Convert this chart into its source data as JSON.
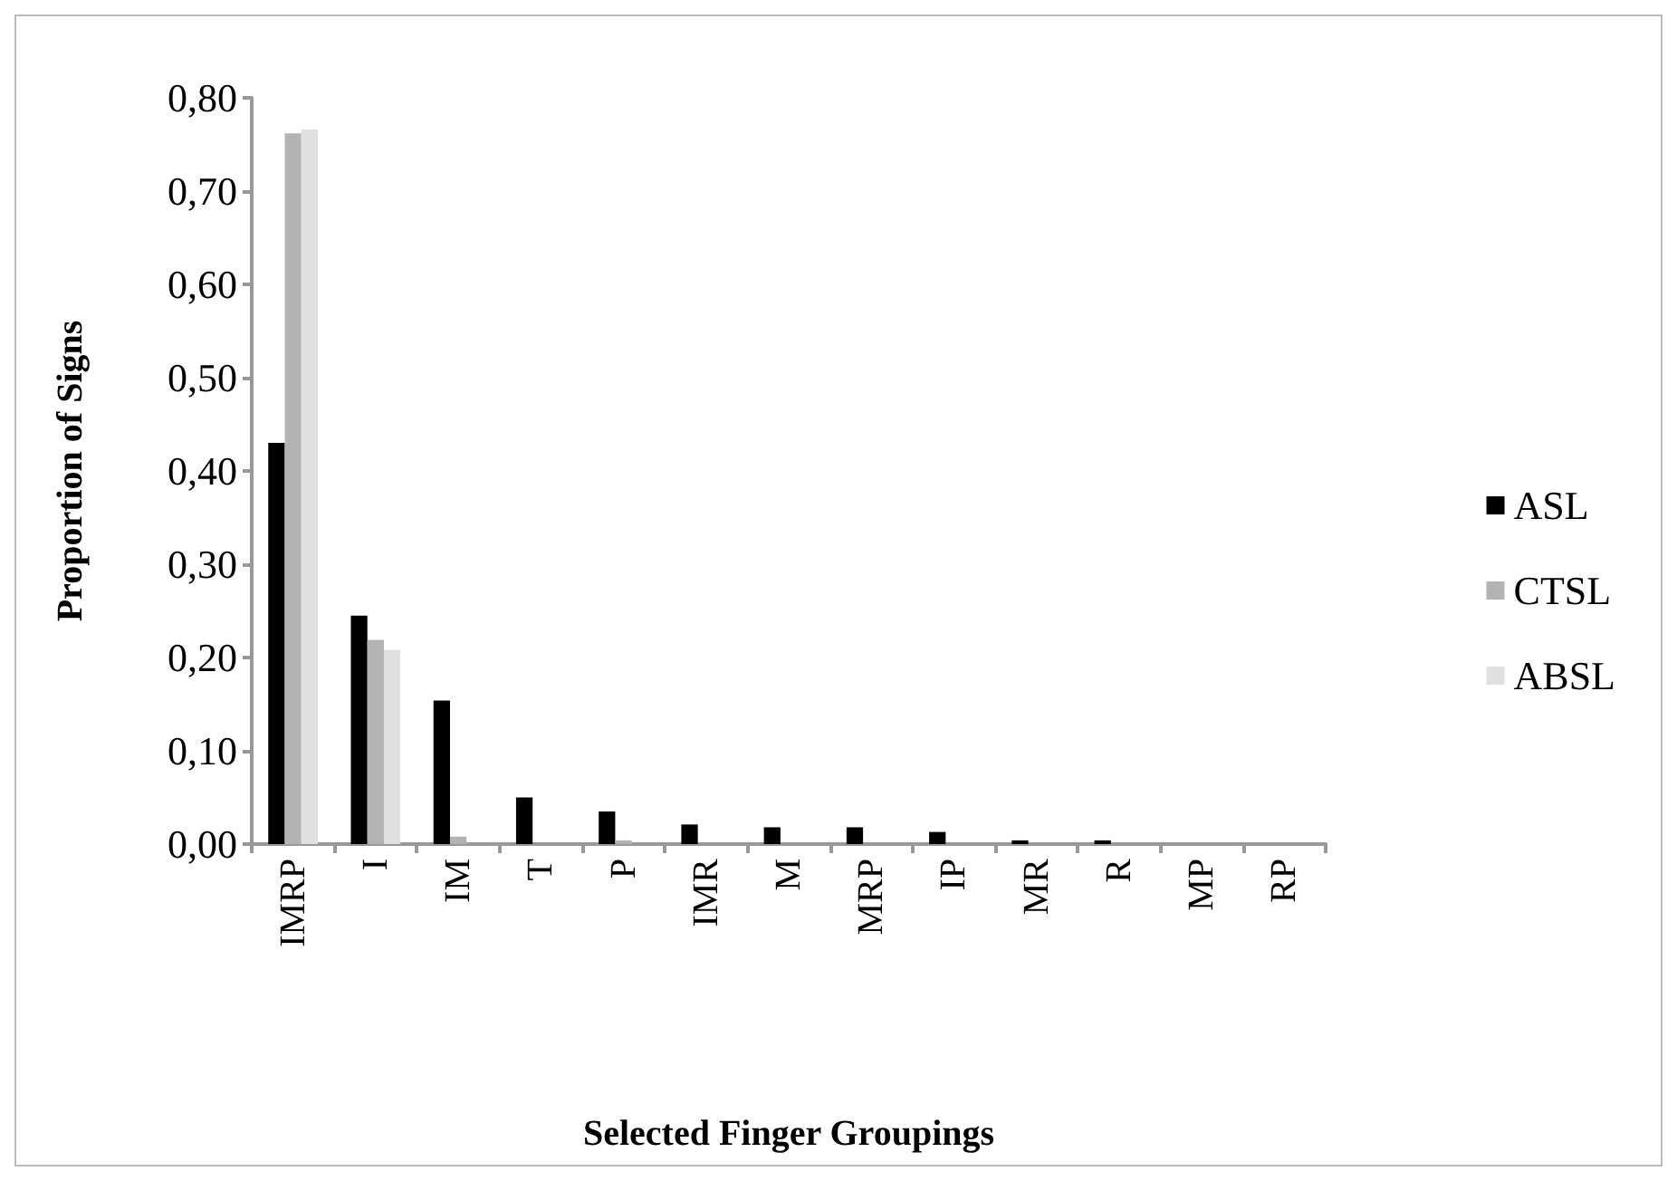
{
  "chart_data": {
    "type": "bar",
    "xlabel": "Selected Finger Groupings",
    "ylabel": "Proportion of Signs",
    "categories": [
      "IMRP",
      "I",
      "IM",
      "T",
      "P",
      "IMR",
      "M",
      "MRP",
      "IP",
      "MR",
      "R",
      "MP",
      "RP"
    ],
    "series": [
      {
        "name": "ASL",
        "color": "#000000",
        "values": [
          0.43,
          0.245,
          0.154,
          0.05,
          0.035,
          0.021,
          0.018,
          0.018,
          0.013,
          0.004,
          0.004,
          0,
          0
        ]
      },
      {
        "name": "CTSL",
        "color": "#b3b3b3",
        "values": [
          0.762,
          0.219,
          0.008,
          0,
          0.004,
          0,
          0,
          0,
          0,
          0,
          0,
          0,
          0
        ]
      },
      {
        "name": "ABSL",
        "color": "#e0e0e0",
        "values": [
          0.766,
          0.208,
          0,
          0,
          0,
          0,
          0,
          0,
          0,
          0,
          0,
          0,
          0
        ]
      }
    ],
    "ylim": [
      0,
      0.8
    ],
    "yticks": [
      {
        "value": 0,
        "label": "0,00"
      },
      {
        "value": 0.1,
        "label": "0,10"
      },
      {
        "value": 0.2,
        "label": "0,20"
      },
      {
        "value": 0.3,
        "label": "0,30"
      },
      {
        "value": 0.4,
        "label": "0,40"
      },
      {
        "value": 0.5,
        "label": "0,50"
      },
      {
        "value": 0.6,
        "label": "0,60"
      },
      {
        "value": 0.7,
        "label": "0,70"
      },
      {
        "value": 0.8,
        "label": "0,80"
      }
    ],
    "grid": false,
    "legend": "right"
  }
}
